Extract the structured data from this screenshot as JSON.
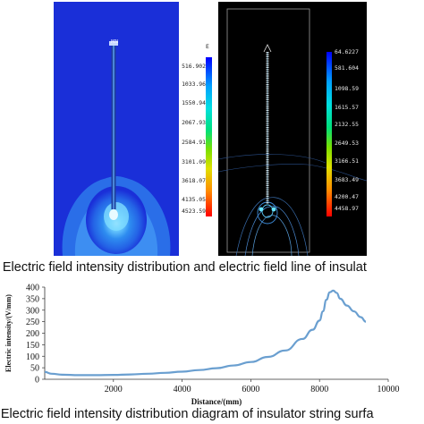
{
  "figure": {
    "caption_a": ") Electric field intensity distribution and electric field line of insulat",
    "caption_b": ") Electric field intensity distribution diagram of insulator string surfa",
    "left_panel_top_label": "MN",
    "left_colorbar": {
      "unit": "E",
      "labels": [
        "516.902",
        "1033.96",
        "1550.94",
        "2067.93",
        "2584.91",
        "3101.09",
        "3618.07",
        "4135.05",
        "4523.59"
      ]
    },
    "right_colorbar": {
      "labels": [
        "64.6227",
        "581.604",
        "1098.59",
        "1615.57",
        "2132.55",
        "2649.53",
        "3166.51",
        "3683.49",
        "4200.47",
        "4458.97"
      ]
    },
    "colors": {
      "left_background": "#1a2fd8",
      "right_background": "#000000",
      "curve": "#6a9fd0"
    }
  },
  "chart_data": {
    "type": "line",
    "ylabel": "Electric intensity/(V/mm)",
    "xlabel": "Distance/(mm)",
    "xlim": [
      0,
      10000
    ],
    "ylim": [
      0,
      400
    ],
    "xticks": [
      "2000",
      "4000",
      "6000",
      "8000",
      "10000"
    ],
    "yticks": [
      "0",
      "50",
      "100",
      "150",
      "200",
      "250",
      "300",
      "350",
      "400"
    ],
    "series": [
      {
        "x": [
          0,
          200,
          500,
          1000,
          1500,
          2000,
          2500,
          3000,
          3500,
          4000,
          4500,
          5000,
          5500,
          6000,
          6500,
          7000,
          7500,
          7800,
          8000,
          8100,
          8200,
          8300,
          8400,
          8500,
          8600,
          8800,
          9000,
          9200,
          9350
        ],
        "y": [
          32,
          24,
          20,
          18,
          18,
          19,
          21,
          24,
          28,
          33,
          40,
          48,
          60,
          75,
          97,
          125,
          175,
          215,
          255,
          295,
          345,
          378,
          385,
          375,
          350,
          320,
          295,
          270,
          250
        ]
      }
    ]
  }
}
